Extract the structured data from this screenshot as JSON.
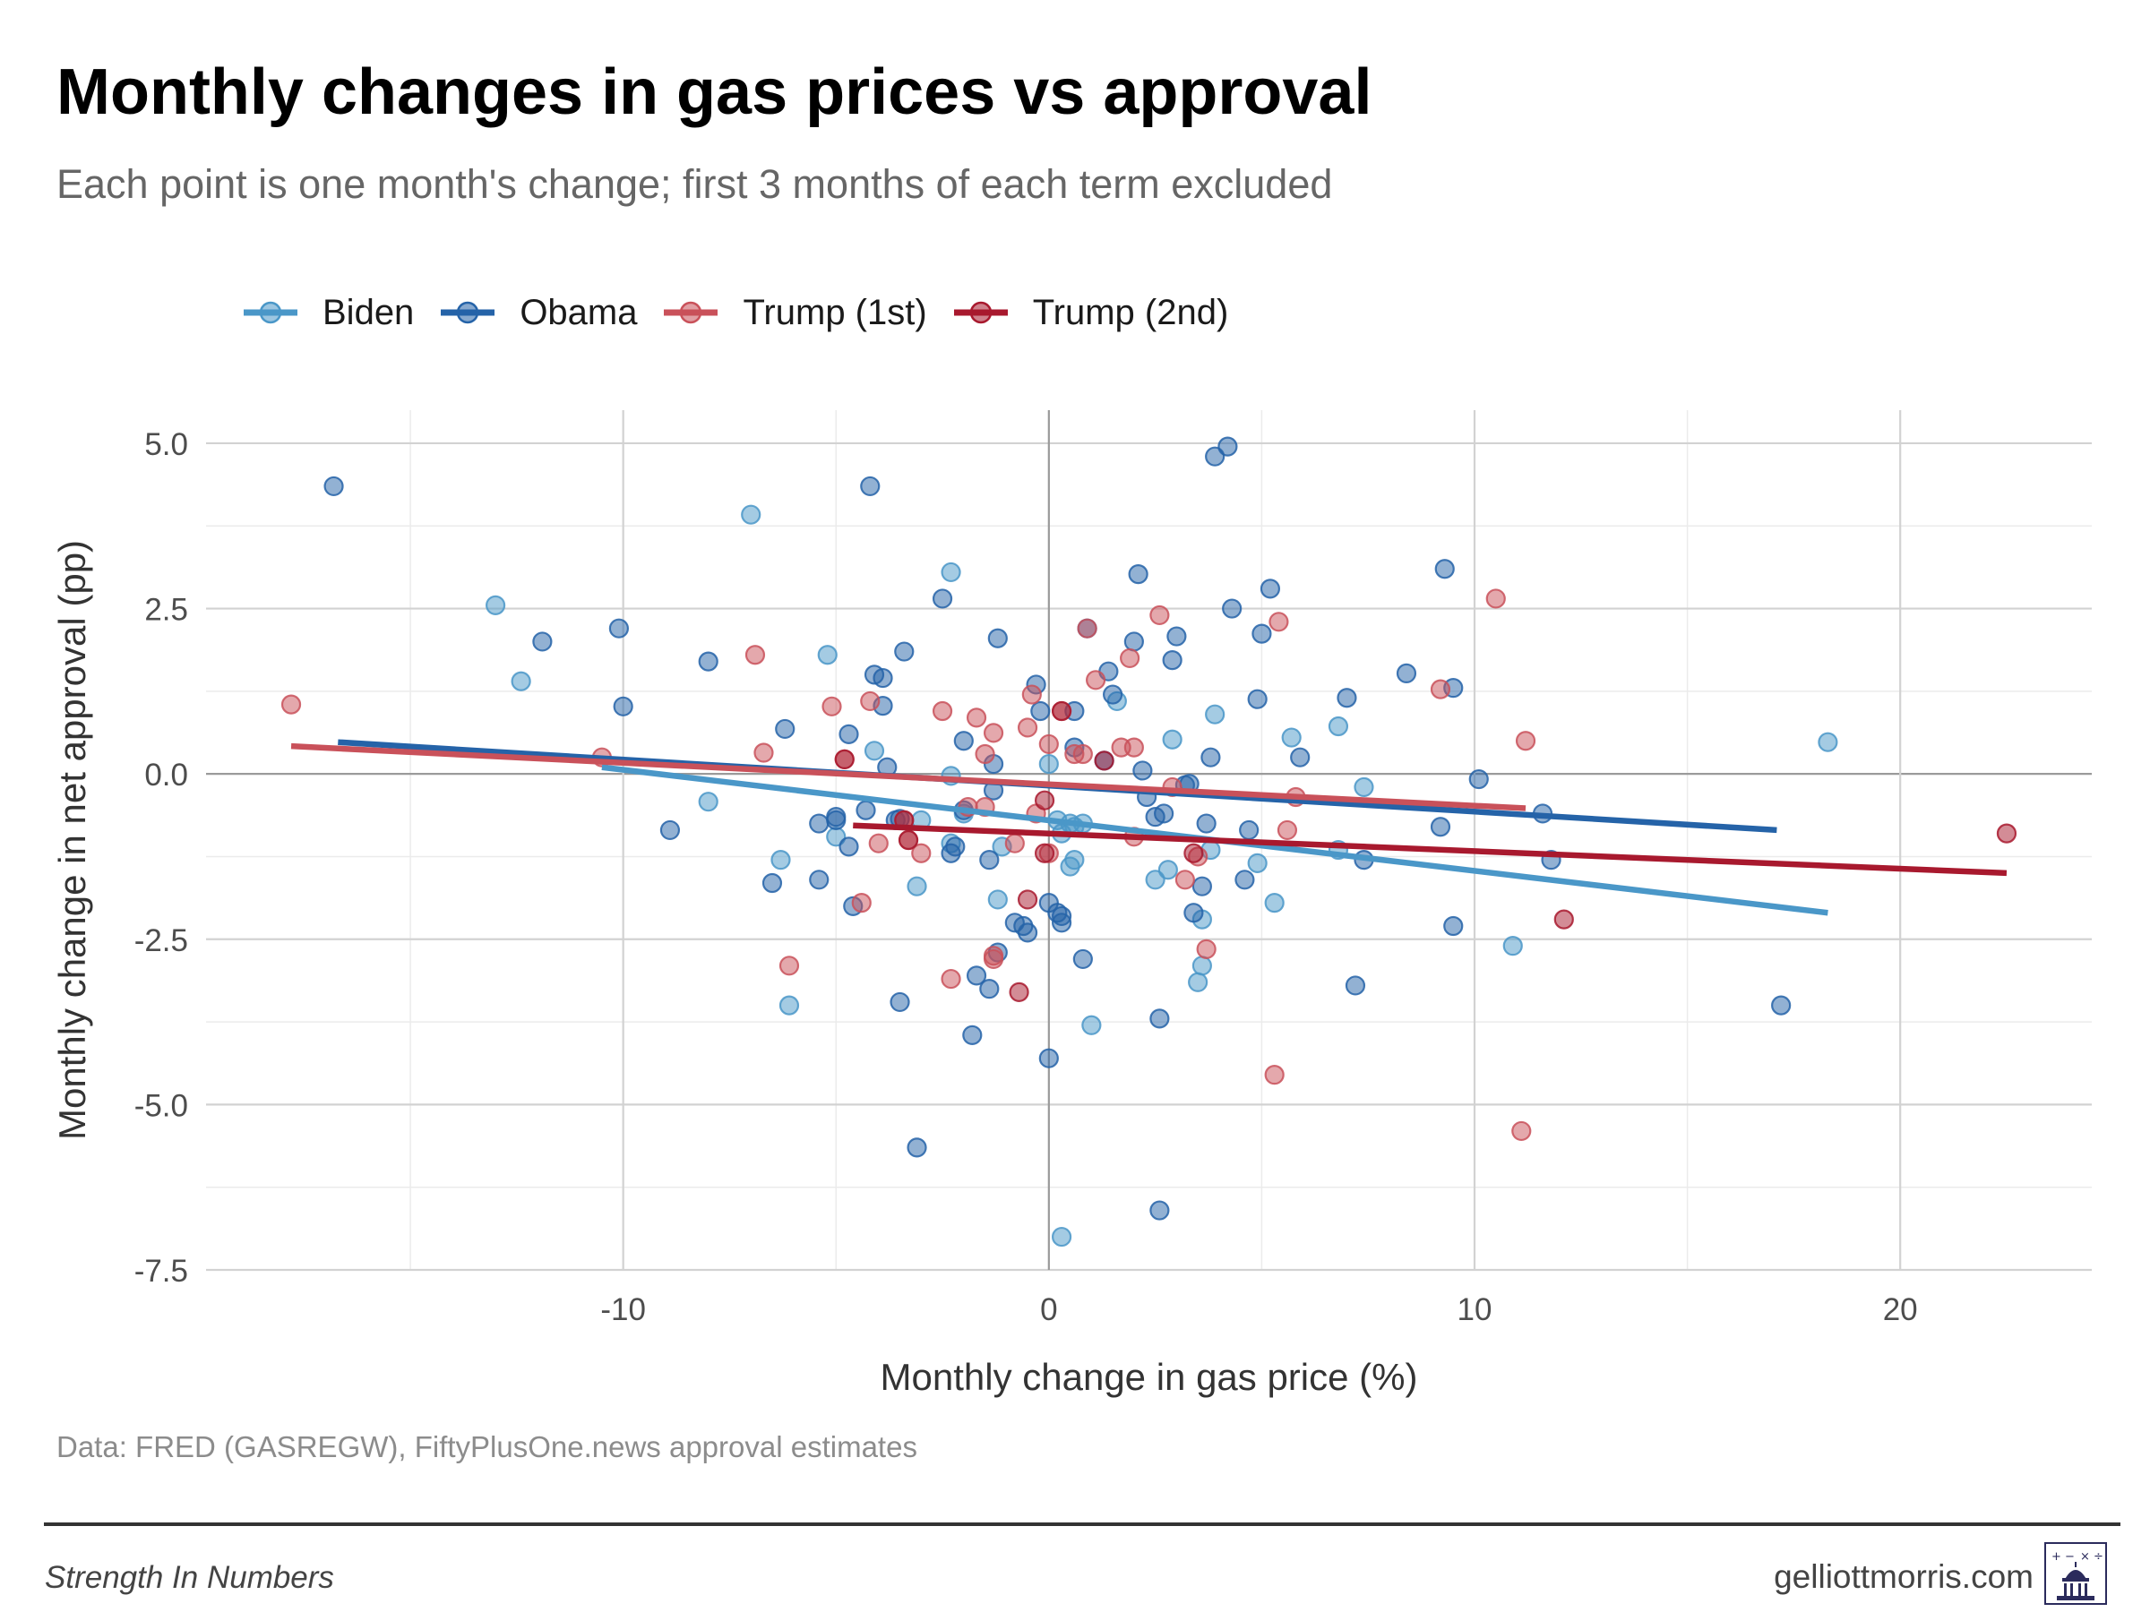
{
  "header": {
    "title": "Monthly changes in gas prices vs approval",
    "subtitle": "Each point is one month's change; first 3 months of each term excluded"
  },
  "footer": {
    "source": "Data: FRED (GASREGW), FiftyPlusOne.news approval estimates",
    "brand": "Strength In Numbers",
    "site": "gelliottmorris.com",
    "logo_icon": "capitol-dome-icon"
  },
  "chart_data": {
    "type": "scatter",
    "xlabel": "Monthly change in gas price (%)",
    "ylabel": "Monthly change in net approval (pp)",
    "xlim": [
      -19.8,
      24.5
    ],
    "ylim": [
      -7.5,
      5.5
    ],
    "x_ticks": [
      -10,
      0,
      10,
      20
    ],
    "x_tick_labels": [
      "-10",
      "0",
      "10",
      "20"
    ],
    "y_ticks": [
      5,
      2.5,
      0,
      -2.5,
      -5,
      -7.5
    ],
    "y_tick_labels": [
      "5.0",
      "2.5",
      "0.0",
      "-2.5",
      "-5.0",
      "-7.5"
    ],
    "grid": true,
    "legend_position": "top-left",
    "series": [
      {
        "name": "Biden",
        "color": "#4a97c8",
        "trend": [
          [
            -10.5,
            0.1
          ],
          [
            18.3,
            -2.1
          ]
        ],
        "points": [
          [
            -13,
            2.55
          ],
          [
            -12.4,
            1.4
          ],
          [
            -8,
            -0.42
          ],
          [
            -7,
            3.92
          ],
          [
            -6.3,
            -1.3
          ],
          [
            -6.1,
            -3.5
          ],
          [
            -5.2,
            1.8
          ],
          [
            -5,
            -0.95
          ],
          [
            -4.1,
            0.35
          ],
          [
            -3.1,
            -1.7
          ],
          [
            -3,
            -0.7
          ],
          [
            -2.3,
            3.05
          ],
          [
            -2.3,
            -0.03
          ],
          [
            -2.3,
            -1.05
          ],
          [
            -2,
            -0.6
          ],
          [
            -1.2,
            -1.9
          ],
          [
            -1.1,
            -1.1
          ],
          [
            0,
            0.15
          ],
          [
            0.2,
            -0.7
          ],
          [
            0.3,
            -0.9
          ],
          [
            0.3,
            -7.0
          ],
          [
            0.5,
            -0.75
          ],
          [
            0.5,
            -1.4
          ],
          [
            0.6,
            -1.3
          ],
          [
            0.6,
            -0.8
          ],
          [
            0.8,
            -0.75
          ],
          [
            1,
            -3.8
          ],
          [
            1.6,
            1.1
          ],
          [
            2.5,
            -1.6
          ],
          [
            2.8,
            -1.45
          ],
          [
            2.9,
            0.52
          ],
          [
            3.5,
            -3.15
          ],
          [
            3.6,
            -2.9
          ],
          [
            3.6,
            -2.2
          ],
          [
            3.8,
            -1.15
          ],
          [
            3.9,
            0.9
          ],
          [
            4.9,
            -1.35
          ],
          [
            5.3,
            -1.95
          ],
          [
            5.7,
            0.55
          ],
          [
            6.8,
            0.72
          ],
          [
            6.8,
            -1.15
          ],
          [
            7.4,
            -0.2
          ],
          [
            10.9,
            -2.6
          ],
          [
            18.3,
            0.48
          ]
        ]
      },
      {
        "name": "Obama",
        "color": "#2563a8",
        "trend": [
          [
            -16.7,
            0.48
          ],
          [
            17.1,
            -0.85
          ]
        ],
        "points": [
          [
            -16.8,
            4.35
          ],
          [
            -11.9,
            2
          ],
          [
            -10.1,
            2.2
          ],
          [
            -10,
            1.02
          ],
          [
            -8.9,
            -0.85
          ],
          [
            -8,
            1.7
          ],
          [
            -6.5,
            -1.65
          ],
          [
            -6.2,
            0.68
          ],
          [
            -5.4,
            -1.6
          ],
          [
            -5.4,
            -0.75
          ],
          [
            -5,
            -0.65
          ],
          [
            -5,
            -0.7
          ],
          [
            -4.7,
            0.6
          ],
          [
            -4.7,
            -1.1
          ],
          [
            -4.6,
            -2
          ],
          [
            -4.3,
            -0.55
          ],
          [
            -4.2,
            4.35
          ],
          [
            -4.1,
            1.5
          ],
          [
            -3.9,
            1.45
          ],
          [
            -3.9,
            1.03
          ],
          [
            -3.8,
            0.1
          ],
          [
            -3.6,
            -0.7
          ],
          [
            -3.5,
            -0.68
          ],
          [
            -3.5,
            -3.45
          ],
          [
            -3.4,
            1.85
          ],
          [
            -3.1,
            -5.65
          ],
          [
            -2.5,
            2.65
          ],
          [
            -2.3,
            -1.2
          ],
          [
            -2.2,
            -1.1
          ],
          [
            -2,
            0.5
          ],
          [
            -2,
            -0.55
          ],
          [
            -1.8,
            -3.95
          ],
          [
            -1.7,
            -3.05
          ],
          [
            -1.4,
            -1.3
          ],
          [
            -1.4,
            -3.25
          ],
          [
            -1.3,
            -0.25
          ],
          [
            -1.3,
            0.15
          ],
          [
            -1.2,
            2.05
          ],
          [
            -1.2,
            -2.7
          ],
          [
            -0.8,
            -2.25
          ],
          [
            -0.6,
            -2.3
          ],
          [
            -0.5,
            -2.4
          ],
          [
            -0.3,
            1.35
          ],
          [
            -0.2,
            0.95
          ],
          [
            0,
            -1.95
          ],
          [
            0,
            -4.3
          ],
          [
            0.2,
            -2.1
          ],
          [
            0.3,
            -2.25
          ],
          [
            0.3,
            -2.15
          ],
          [
            0.6,
            0.4
          ],
          [
            0.6,
            0.95
          ],
          [
            0.8,
            -2.8
          ],
          [
            0.9,
            2.2
          ],
          [
            1.3,
            0.2
          ],
          [
            1.4,
            1.55
          ],
          [
            1.5,
            1.2
          ],
          [
            2,
            2
          ],
          [
            2.1,
            3.02
          ],
          [
            2.2,
            0.05
          ],
          [
            2.3,
            -0.35
          ],
          [
            2.5,
            -0.65
          ],
          [
            2.6,
            -3.7
          ],
          [
            2.6,
            -6.6
          ],
          [
            2.7,
            -0.6
          ],
          [
            2.9,
            1.72
          ],
          [
            3,
            2.08
          ],
          [
            3.2,
            -0.17
          ],
          [
            3.3,
            -0.15
          ],
          [
            3.4,
            -2.1
          ],
          [
            3.6,
            -1.7
          ],
          [
            3.7,
            -0.75
          ],
          [
            3.8,
            0.25
          ],
          [
            3.9,
            4.8
          ],
          [
            4.2,
            4.95
          ],
          [
            4.3,
            2.5
          ],
          [
            4.6,
            -1.6
          ],
          [
            4.7,
            -0.85
          ],
          [
            4.9,
            1.13
          ],
          [
            5,
            2.12
          ],
          [
            5.2,
            2.8
          ],
          [
            5.9,
            0.25
          ],
          [
            7,
            1.15
          ],
          [
            7.2,
            -3.2
          ],
          [
            7.4,
            -1.3
          ],
          [
            8.4,
            1.52
          ],
          [
            9.2,
            -0.8
          ],
          [
            9.3,
            3.1
          ],
          [
            9.5,
            1.3
          ],
          [
            9.5,
            -2.3
          ],
          [
            10.1,
            -0.08
          ],
          [
            11.6,
            -0.6
          ],
          [
            11.8,
            -1.3
          ],
          [
            17.2,
            -3.5
          ]
        ]
      },
      {
        "name": "Trump (1st)",
        "color": "#c9515a",
        "trend": [
          [
            -17.8,
            0.42
          ],
          [
            11.2,
            -0.52
          ]
        ],
        "points": [
          [
            -17.8,
            1.05
          ],
          [
            -10.5,
            0.25
          ],
          [
            -6.9,
            1.8
          ],
          [
            -6.7,
            0.32
          ],
          [
            -6.1,
            -2.9
          ],
          [
            -5.1,
            1.02
          ],
          [
            -4.8,
            0.22
          ],
          [
            -4.4,
            -1.95
          ],
          [
            -4.2,
            1.1
          ],
          [
            -4,
            -1.05
          ],
          [
            -3.4,
            -0.7
          ],
          [
            -3.3,
            -1
          ],
          [
            -3,
            -1.2
          ],
          [
            -2.5,
            0.95
          ],
          [
            -2.3,
            -3.1
          ],
          [
            -1.9,
            -0.5
          ],
          [
            -1.7,
            0.85
          ],
          [
            -1.5,
            -0.5
          ],
          [
            -1.5,
            0.3
          ],
          [
            -1.3,
            0.62
          ],
          [
            -1.3,
            -2.75
          ],
          [
            -1.3,
            -2.8
          ],
          [
            -0.8,
            -1.05
          ],
          [
            -0.5,
            0.7
          ],
          [
            -0.4,
            1.2
          ],
          [
            -0.3,
            -0.6
          ],
          [
            0,
            -1.2
          ],
          [
            0,
            0.45
          ],
          [
            0.3,
            0.95
          ],
          [
            0.6,
            0.3
          ],
          [
            0.8,
            0.3
          ],
          [
            0.9,
            2.2
          ],
          [
            1.1,
            1.42
          ],
          [
            1.7,
            0.4
          ],
          [
            1.9,
            1.75
          ],
          [
            2,
            0.4
          ],
          [
            2,
            -0.95
          ],
          [
            2.6,
            2.4
          ],
          [
            2.9,
            -0.2
          ],
          [
            3.2,
            -1.6
          ],
          [
            3.5,
            -1.25
          ],
          [
            3.7,
            -2.65
          ],
          [
            5.3,
            -4.55
          ],
          [
            5.4,
            2.3
          ],
          [
            5.6,
            -0.85
          ],
          [
            5.8,
            -0.35
          ],
          [
            9.2,
            1.28
          ],
          [
            10.5,
            2.65
          ],
          [
            11.1,
            -5.4
          ],
          [
            11.2,
            0.5
          ]
        ]
      },
      {
        "name": "Trump (2nd)",
        "color": "#a8192e",
        "trend": [
          [
            -4.6,
            -0.78
          ],
          [
            22.5,
            -1.5
          ]
        ],
        "points": [
          [
            -4.8,
            0.22
          ],
          [
            -3.4,
            -0.7
          ],
          [
            -3.3,
            -1.0
          ],
          [
            -0.7,
            -3.3
          ],
          [
            -0.5,
            -1.9
          ],
          [
            -0.1,
            -0.4
          ],
          [
            -0.1,
            -1.2
          ],
          [
            0.3,
            0.95
          ],
          [
            1.3,
            0.2
          ],
          [
            3.4,
            -1.2
          ],
          [
            12.1,
            -2.2
          ],
          [
            22.5,
            -0.9
          ]
        ]
      }
    ]
  }
}
